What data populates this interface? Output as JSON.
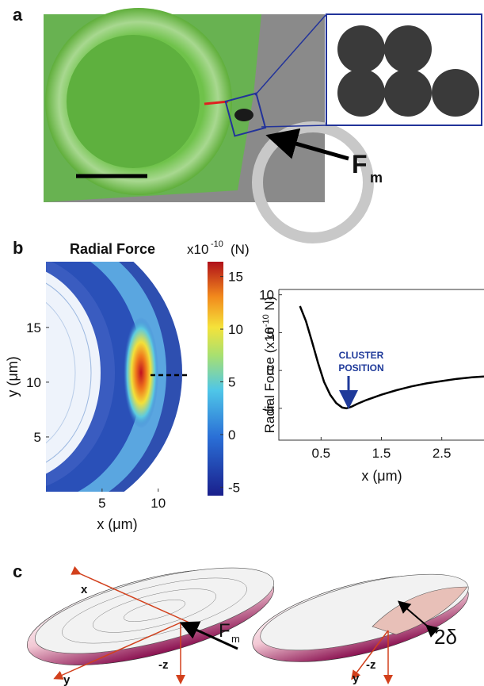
{
  "panel_labels": [
    "a",
    "b",
    "c"
  ],
  "panel_a": {
    "force_symbol": "F",
    "force_subscript": "m"
  },
  "chart_data": [
    {
      "type": "heatmap",
      "title": "Radial Force",
      "unit_prefix": "x10",
      "unit_exponent": "-10",
      "unit": "(N)",
      "xlabel": "x (μm)",
      "ylabel": "y (μm)",
      "xlim": [
        0,
        12.7
      ],
      "ylim": [
        0,
        21
      ],
      "xticks": [
        5,
        10
      ],
      "yticks": [
        5,
        10,
        15
      ],
      "colorbar_lim": [
        -5.8,
        16.4
      ],
      "colorbar_ticks": [
        -5,
        0,
        5,
        10,
        15
      ]
    },
    {
      "type": "line",
      "ylabel_prefix": "Radial Force (x10",
      "ylabel_exponent": "-10",
      "ylabel_suffix": " N)",
      "xlabel": "x (μm)",
      "annotation": [
        "CLUSTER",
        "POSITION"
      ],
      "x": [
        0.15,
        0.25,
        0.35,
        0.45,
        0.55,
        0.65,
        0.75,
        0.85,
        0.92,
        1.0,
        1.1,
        1.25,
        1.5,
        1.75,
        2.0,
        2.25,
        2.5,
        2.75,
        3.0,
        3.2
      ],
      "values": [
        8.5,
        6.5,
        3.8,
        1.0,
        -1.5,
        -3.2,
        -4.3,
        -4.9,
        -5.0,
        -4.8,
        -4.4,
        -3.9,
        -3.2,
        -2.6,
        -2.1,
        -1.7,
        -1.4,
        -1.1,
        -0.9,
        -0.8
      ],
      "color": "#000000",
      "xlim": [
        -0.2,
        3.2
      ],
      "ylim": [
        -9.2,
        10.7
      ],
      "xticks": [
        0.5,
        1.5,
        2.5
      ],
      "yticks": [
        -5,
        0,
        5,
        10
      ]
    }
  ],
  "panel_c": {
    "left_axes": [
      "x",
      "y",
      "-z"
    ],
    "left_force_symbol": "F",
    "left_force_subscript": "m",
    "right_axes": [
      "y",
      "-z"
    ],
    "gap_label": "2δ"
  }
}
